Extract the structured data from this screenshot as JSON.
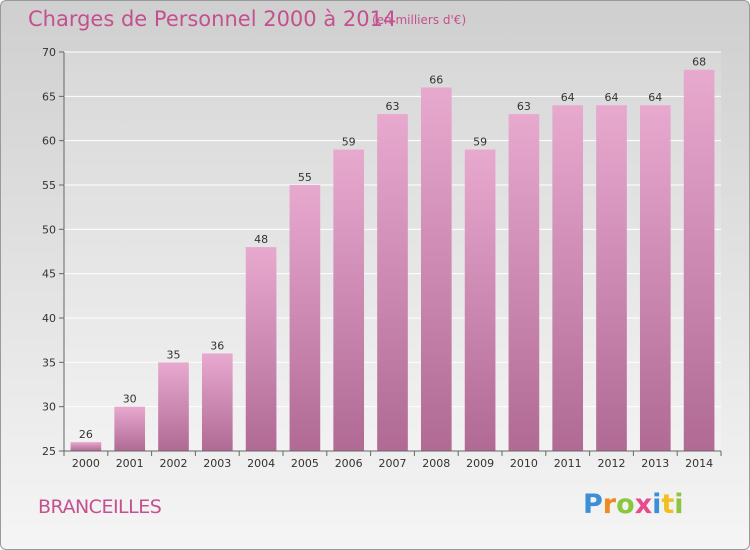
{
  "header": {
    "title": "Charges de Personnel 2000 à 2014",
    "subtitle": "(en milliers d'€)"
  },
  "footer": {
    "place": "BRANCEILLES",
    "logo_letters": [
      "P",
      "r",
      "o",
      "x",
      "i",
      "t",
      "i"
    ],
    "logo_colors": [
      "#3b8fd4",
      "#f08a1e",
      "#8cc63f",
      "#e64c8c",
      "#3b8fd4",
      "#f0c020",
      "#8cc63f"
    ]
  },
  "colors": {
    "bar_top": "#e8a9cf",
    "bar_bottom": "#b06a94",
    "title": "#c5508f"
  },
  "chart_data": {
    "type": "bar",
    "title": "Charges de Personnel 2000 à 2014",
    "subtitle": "(en milliers d'€)",
    "xlabel": "",
    "ylabel": "",
    "categories": [
      "2000",
      "2001",
      "2002",
      "2003",
      "2004",
      "2005",
      "2006",
      "2007",
      "2008",
      "2009",
      "2010",
      "2011",
      "2012",
      "2013",
      "2014"
    ],
    "values": [
      26,
      30,
      35,
      36,
      48,
      55,
      59,
      63,
      66,
      59,
      63,
      64,
      64,
      64,
      68
    ],
    "ylim": [
      25,
      70
    ],
    "yticks": [
      25,
      30,
      35,
      40,
      45,
      50,
      55,
      60,
      65,
      70
    ],
    "grid": true
  }
}
